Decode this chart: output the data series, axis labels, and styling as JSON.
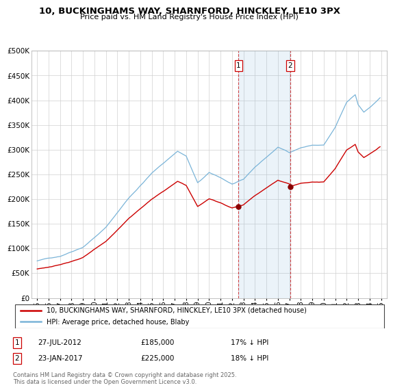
{
  "title": "10, BUCKINGHAMS WAY, SHARNFORD, HINCKLEY, LE10 3PX",
  "subtitle": "Price paid vs. HM Land Registry's House Price Index (HPI)",
  "background_color": "#ffffff",
  "plot_bg_color": "#ffffff",
  "grid_color": "#d0d0d0",
  "hpi_color": "#7ab4d8",
  "price_color": "#cc0000",
  "annotation1_year": 2012.57,
  "annotation2_year": 2017.07,
  "annotation1_price": 185000,
  "annotation2_price": 225000,
  "annotation1_date": "27-JUL-2012",
  "annotation2_date": "23-JAN-2017",
  "annotation1_hpi": "17% ↓ HPI",
  "annotation2_hpi": "18% ↓ HPI",
  "legend_label_price": "10, BUCKINGHAMS WAY, SHARNFORD, HINCKLEY, LE10 3PX (detached house)",
  "legend_label_hpi": "HPI: Average price, detached house, Blaby",
  "footer": "Contains HM Land Registry data © Crown copyright and database right 2025.\nThis data is licensed under the Open Government Licence v3.0.",
  "ylim": [
    0,
    500000
  ],
  "yticks": [
    0,
    50000,
    100000,
    150000,
    200000,
    250000,
    300000,
    350000,
    400000,
    450000,
    500000
  ],
  "ytick_labels": [
    "£0",
    "£50K",
    "£100K",
    "£150K",
    "£200K",
    "£250K",
    "£300K",
    "£350K",
    "£400K",
    "£450K",
    "£500K"
  ],
  "xticks": [
    1995,
    1996,
    1997,
    1998,
    1999,
    2000,
    2001,
    2002,
    2003,
    2004,
    2005,
    2006,
    2007,
    2008,
    2009,
    2010,
    2011,
    2012,
    2013,
    2014,
    2015,
    2016,
    2017,
    2018,
    2019,
    2020,
    2021,
    2022,
    2023,
    2024,
    2025
  ],
  "xlim_start": 1994.5,
  "xlim_end": 2025.5
}
